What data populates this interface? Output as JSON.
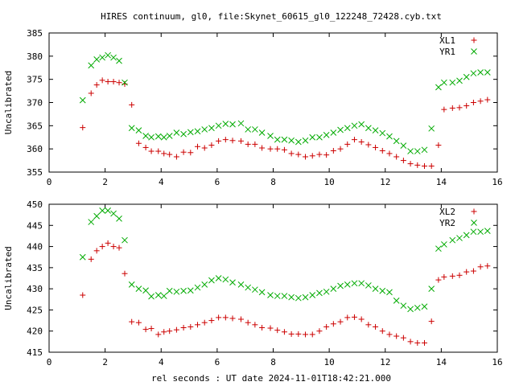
{
  "title": "HIRES continuum, gl0, file:Skynet_60615_gl0_122248_72428.cyb.txt",
  "xlabel": "rel seconds : UT date 2024-11-01T18:42:21.000",
  "colors": {
    "red": "#cc0000",
    "green": "#00aa00"
  },
  "chart_data": [
    {
      "type": "scatter",
      "ylabel": "Uncalibrated",
      "xlim": [
        0,
        16
      ],
      "ylim": [
        355,
        385
      ],
      "xticks": [
        0,
        2,
        4,
        6,
        8,
        10,
        12,
        14,
        16
      ],
      "yticks": [
        355,
        360,
        365,
        370,
        375,
        380,
        385
      ],
      "legend_position": "top-right",
      "series": [
        {
          "name": "XL1",
          "marker": "plus",
          "color": "#cc0000",
          "x": [
            1.2,
            1.5,
            1.7,
            1.9,
            2.1,
            2.3,
            2.5,
            2.7,
            2.95,
            3.2,
            3.45,
            3.65,
            3.9,
            4.1,
            4.3,
            4.55,
            4.8,
            5.05,
            5.3,
            5.55,
            5.8,
            6.05,
            6.3,
            6.55,
            6.85,
            7.1,
            7.35,
            7.6,
            7.9,
            8.15,
            8.4,
            8.65,
            8.9,
            9.15,
            9.4,
            9.65,
            9.9,
            10.15,
            10.4,
            10.65,
            10.9,
            11.15,
            11.4,
            11.65,
            11.9,
            12.15,
            12.4,
            12.65,
            12.9,
            13.15,
            13.4,
            13.65,
            13.9,
            14.1,
            14.4,
            14.65,
            14.9,
            15.15,
            15.4,
            15.65
          ],
          "y": [
            364.6,
            372,
            373.8,
            374.8,
            374.5,
            374.5,
            374.3,
            374,
            369.5,
            361.2,
            360.3,
            359.5,
            359.5,
            359,
            358.8,
            358.3,
            359.3,
            359.2,
            360.5,
            360.2,
            360.8,
            361.7,
            362,
            361.8,
            361.7,
            361,
            361,
            360.2,
            360,
            360,
            359.8,
            359,
            358.8,
            358.3,
            358.5,
            358.8,
            358.7,
            359.6,
            360,
            361,
            362,
            361.5,
            360.9,
            360.3,
            359.6,
            359,
            358.3,
            357.5,
            356.8,
            356.5,
            356.3,
            356.3,
            360.8,
            368.5,
            368.8,
            368.9,
            369.3,
            370,
            370.3,
            370.6
          ]
        },
        {
          "name": "YR1",
          "marker": "cross",
          "color": "#00aa00",
          "x": [
            1.2,
            1.5,
            1.7,
            1.9,
            2.1,
            2.3,
            2.5,
            2.7,
            2.95,
            3.2,
            3.45,
            3.65,
            3.9,
            4.1,
            4.3,
            4.55,
            4.8,
            5.05,
            5.3,
            5.55,
            5.8,
            6.05,
            6.3,
            6.55,
            6.85,
            7.1,
            7.35,
            7.6,
            7.9,
            8.15,
            8.4,
            8.65,
            8.9,
            9.15,
            9.4,
            9.65,
            9.9,
            10.15,
            10.4,
            10.65,
            10.9,
            11.15,
            11.4,
            11.65,
            11.9,
            12.15,
            12.4,
            12.65,
            12.9,
            13.15,
            13.4,
            13.65,
            13.9,
            14.1,
            14.4,
            14.65,
            14.9,
            15.15,
            15.4,
            15.65
          ],
          "y": [
            370.5,
            378,
            379.3,
            379.7,
            380.2,
            379.7,
            379,
            374.3,
            364.5,
            364,
            362.8,
            362.5,
            362.7,
            362.5,
            362.8,
            363.5,
            363.2,
            363.6,
            363.8,
            364.2,
            364.5,
            365,
            365.4,
            365.3,
            365.5,
            364.2,
            364.2,
            363.5,
            362.8,
            362,
            362,
            361.8,
            361.5,
            361.8,
            362.5,
            362.5,
            363,
            363.5,
            364.1,
            364.5,
            365,
            365.3,
            364.5,
            364,
            363.4,
            362.7,
            361.7,
            360.7,
            359.5,
            359.5,
            359.8,
            364.4,
            373.3,
            374.3,
            374.3,
            374.7,
            375.5,
            376.3,
            376.5,
            376.5
          ]
        }
      ]
    },
    {
      "type": "scatter",
      "ylabel": "Uncalibrated",
      "xlim": [
        0,
        16
      ],
      "ylim": [
        415,
        450
      ],
      "xticks": [
        0,
        2,
        4,
        6,
        8,
        10,
        12,
        14,
        16
      ],
      "yticks": [
        415,
        420,
        425,
        430,
        435,
        440,
        445,
        450
      ],
      "legend_position": "top-right",
      "series": [
        {
          "name": "XL2",
          "marker": "plus",
          "color": "#cc0000",
          "x": [
            1.2,
            1.5,
            1.7,
            1.9,
            2.1,
            2.3,
            2.5,
            2.7,
            2.95,
            3.2,
            3.45,
            3.65,
            3.9,
            4.1,
            4.3,
            4.55,
            4.8,
            5.05,
            5.3,
            5.55,
            5.8,
            6.05,
            6.3,
            6.55,
            6.85,
            7.1,
            7.35,
            7.6,
            7.9,
            8.15,
            8.4,
            8.65,
            8.9,
            9.15,
            9.4,
            9.65,
            9.9,
            10.15,
            10.4,
            10.65,
            10.9,
            11.15,
            11.4,
            11.65,
            11.9,
            12.15,
            12.4,
            12.65,
            12.9,
            13.15,
            13.4,
            13.65,
            13.9,
            14.1,
            14.4,
            14.65,
            14.9,
            15.15,
            15.4,
            15.65
          ],
          "y": [
            428.5,
            437,
            439,
            440,
            440.8,
            440,
            439.7,
            433.6,
            422.2,
            422,
            420.4,
            420.6,
            419.2,
            419.8,
            420,
            420.3,
            420.8,
            421,
            421.5,
            422,
            422.5,
            423.2,
            423.2,
            423,
            422.8,
            422,
            421.5,
            420.8,
            420.7,
            420.2,
            419.8,
            419.3,
            419.3,
            419.2,
            419.2,
            420,
            421,
            421.7,
            422.2,
            423.2,
            423.3,
            422.8,
            421.5,
            421,
            420,
            419.2,
            418.8,
            418.4,
            417.5,
            417.2,
            417.2,
            422.3,
            432.1,
            432.8,
            433,
            433.2,
            434,
            434.2,
            435.2,
            435.4
          ]
        },
        {
          "name": "YR2",
          "marker": "cross",
          "color": "#00aa00",
          "x": [
            1.2,
            1.5,
            1.7,
            1.9,
            2.1,
            2.3,
            2.5,
            2.7,
            2.95,
            3.2,
            3.45,
            3.65,
            3.9,
            4.1,
            4.3,
            4.55,
            4.8,
            5.05,
            5.3,
            5.55,
            5.8,
            6.05,
            6.3,
            6.55,
            6.85,
            7.1,
            7.35,
            7.6,
            7.9,
            8.15,
            8.4,
            8.65,
            8.9,
            9.15,
            9.4,
            9.65,
            9.9,
            10.15,
            10.4,
            10.65,
            10.9,
            11.15,
            11.4,
            11.65,
            11.9,
            12.15,
            12.4,
            12.65,
            12.9,
            13.15,
            13.4,
            13.65,
            13.9,
            14.1,
            14.4,
            14.65,
            14.9,
            15.15,
            15.4,
            15.65
          ],
          "y": [
            437.5,
            445.8,
            447.2,
            448.5,
            448.5,
            447.8,
            446.6,
            441.5,
            431,
            430,
            429.6,
            428.2,
            428.5,
            428.3,
            429.5,
            429.3,
            429.5,
            429.6,
            430.3,
            431,
            432,
            432.5,
            432.2,
            431.5,
            431,
            430.3,
            429.8,
            429.2,
            428.5,
            428.3,
            428.3,
            428,
            427.8,
            428,
            428.5,
            429,
            429.3,
            430,
            430.7,
            431,
            431.3,
            431.3,
            430.8,
            430,
            429.5,
            429.2,
            427.2,
            426,
            425.2,
            425.5,
            425.8,
            430,
            439.5,
            440.5,
            441.5,
            442,
            442.7,
            443.5,
            443.5,
            443.7
          ]
        }
      ]
    }
  ]
}
